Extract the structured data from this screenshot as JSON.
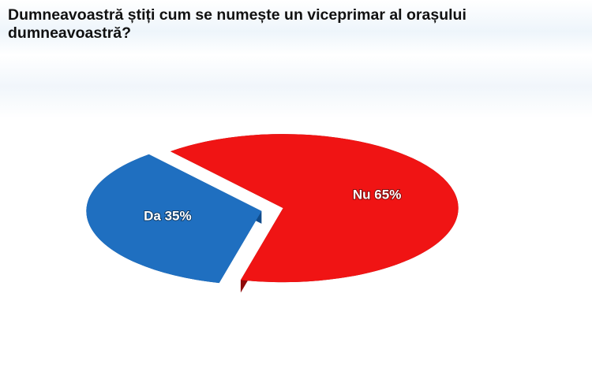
{
  "chart_data": {
    "type": "pie",
    "title": "Dumneavoastră știți cum se numește un viceprimar al orașului dumneavoastră?",
    "categories": [
      "Da",
      "Nu"
    ],
    "values": [
      35,
      65
    ],
    "value_labels": [
      "35%",
      "65%"
    ],
    "colors": [
      "#1f6fc0",
      "#f01414"
    ],
    "side_colors": [
      "#0f4a8a",
      "#8e0a0a"
    ]
  }
}
